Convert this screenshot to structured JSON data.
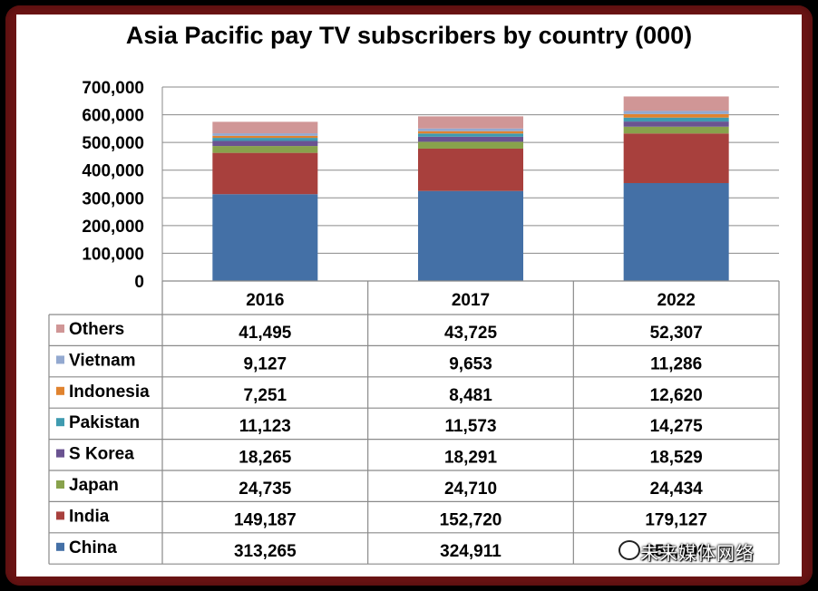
{
  "chart_data": {
    "type": "bar",
    "stacked": true,
    "title": "Asia Pacific pay TV subscribers by country (000)",
    "categories": [
      "2016",
      "2017",
      "2022"
    ],
    "ylim": [
      0,
      700000
    ],
    "yticks": [
      "700,000",
      "600,000",
      "500,000",
      "400,000",
      "300,000",
      "200,000",
      "100,000",
      "0"
    ],
    "ytick_values": [
      700000,
      600000,
      500000,
      400000,
      300000,
      200000,
      100000,
      0
    ],
    "grid": true,
    "legend": "data-table",
    "series": [
      {
        "name": "China",
        "color": "#4470a6",
        "values": [
          313265,
          324911,
          353300
        ],
        "labels": [
          "313,265",
          "324,911",
          "353,300"
        ]
      },
      {
        "name": "India",
        "color": "#a8403d",
        "values": [
          149187,
          152720,
          179127
        ],
        "labels": [
          "149,187",
          "152,720",
          "179,127"
        ]
      },
      {
        "name": "Japan",
        "color": "#88a24c",
        "values": [
          24735,
          24710,
          24434
        ],
        "labels": [
          "24,735",
          "24,710",
          "24,434"
        ]
      },
      {
        "name": "S Korea",
        "color": "#6a5391",
        "values": [
          18265,
          18291,
          18529
        ],
        "labels": [
          "18,265",
          "18,291",
          "18,529"
        ]
      },
      {
        "name": "Pakistan",
        "color": "#3f9bb0",
        "values": [
          11123,
          11573,
          14275
        ],
        "labels": [
          "11,123",
          "11,573",
          "14,275"
        ]
      },
      {
        "name": "Indonesia",
        "color": "#e0832f",
        "values": [
          7251,
          8481,
          12620
        ],
        "labels": [
          "7,251",
          "8,481",
          "12,620"
        ]
      },
      {
        "name": "Vietnam",
        "color": "#93a9d0",
        "values": [
          9127,
          9653,
          11286
        ],
        "labels": [
          "9,127",
          "9,653",
          "11,286"
        ]
      },
      {
        "name": "Others",
        "color": "#d09696",
        "values": [
          41495,
          43725,
          52307
        ],
        "labels": [
          "41,495",
          "43,725",
          "52,307"
        ]
      }
    ]
  },
  "watermark": {
    "text": "未来媒体网络"
  }
}
